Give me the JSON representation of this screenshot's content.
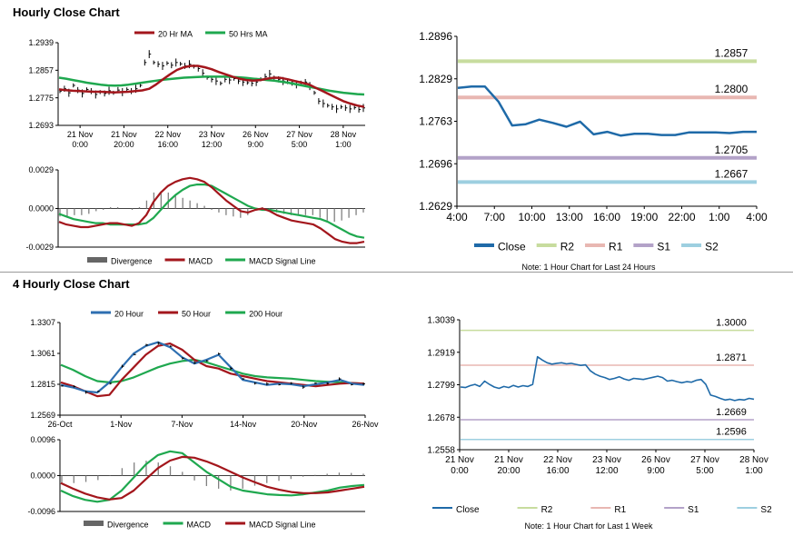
{
  "titles": {
    "hourly": "Hourly Close Chart",
    "four_hourly": "4 Hourly Close Chart"
  },
  "colors": {
    "dark_red": "#a3161c",
    "green": "#1fa84f",
    "blue": "#2e6fb1",
    "bar_gray": "#808080",
    "close_blue": "#1f6aa8",
    "r2": "#c7dc9e",
    "r1": "#e8b7b2",
    "s1": "#b3a2c8",
    "s2": "#9dcfe0"
  },
  "chart_data": [
    {
      "id": "hourly_price",
      "type": "line",
      "title": "Hourly Close Chart",
      "ylim": [
        1.2693,
        1.2939
      ],
      "yticks": [
        "1.2939",
        "1.2857",
        "1.2775",
        "1.2693"
      ],
      "xticks": [
        [
          "21 Nov",
          "0:00"
        ],
        [
          "21 Nov",
          "20:00"
        ],
        [
          "22 Nov",
          "16:00"
        ],
        [
          "23 Nov",
          "12:00"
        ],
        [
          "26 Nov",
          "9:00"
        ],
        [
          "27 Nov",
          "5:00"
        ],
        [
          "28 Nov",
          "1:00"
        ]
      ],
      "legend": [
        "20 Hr MA",
        "50 Hrs MA"
      ],
      "close": [
        1.2795,
        1.2802,
        1.279,
        1.2812,
        1.2798,
        1.2788,
        1.28,
        1.2795,
        1.2785,
        1.2792,
        1.2788,
        1.2796,
        1.279,
        1.2798,
        1.2792,
        1.28,
        1.2795,
        1.2802,
        1.2812,
        1.288,
        1.2905,
        1.288,
        1.2875,
        1.287,
        1.2878,
        1.2872,
        1.288,
        1.2876,
        1.287,
        1.2875,
        1.2868,
        1.2862,
        1.2848,
        1.2835,
        1.283,
        1.2825,
        1.2818,
        1.283,
        1.2828,
        1.2832,
        1.2825,
        1.2822,
        1.282,
        1.2818,
        1.2822,
        1.283,
        1.2838,
        1.2846,
        1.2835,
        1.283,
        1.2825,
        1.2822,
        1.282,
        1.2815,
        1.282,
        1.2822,
        1.281,
        1.279,
        1.2765,
        1.2758,
        1.2752,
        1.2748,
        1.2742,
        1.2748,
        1.2745,
        1.2742,
        1.2746,
        1.274,
        1.2745
      ],
      "series": [
        {
          "name": "20 Hr MA",
          "values": [
            1.28,
            1.2798,
            1.2796,
            1.2795,
            1.2794,
            1.2793,
            1.2793,
            1.2792,
            1.2791,
            1.2792,
            1.2793,
            1.2795,
            1.2797,
            1.2802,
            1.2815,
            1.283,
            1.2845,
            1.2858,
            1.2866,
            1.287,
            1.287,
            1.2866,
            1.286,
            1.2852,
            1.2845,
            1.2838,
            1.2832,
            1.2828,
            1.2826,
            1.2828,
            1.2832,
            1.2835,
            1.2834,
            1.283,
            1.2825,
            1.282,
            1.2815,
            1.2805,
            1.2795,
            1.2785,
            1.2775,
            1.2765,
            1.2758,
            1.2752,
            1.2748
          ]
        },
        {
          "name": "50 Hrs MA",
          "values": [
            1.2835,
            1.2832,
            1.2828,
            1.2824,
            1.282,
            1.2817,
            1.2814,
            1.2812,
            1.2811,
            1.2812,
            1.2814,
            1.2817,
            1.282,
            1.2823,
            1.2826,
            1.2829,
            1.2831,
            1.2833,
            1.2835,
            1.2836,
            1.2837,
            1.2838,
            1.2838,
            1.2838,
            1.2838,
            1.2837,
            1.2836,
            1.2834,
            1.2832,
            1.283,
            1.2828,
            1.2826,
            1.2823,
            1.282,
            1.2816,
            1.2812,
            1.2808,
            1.2804,
            1.28,
            1.2796,
            1.2793,
            1.279,
            1.2788,
            1.2786,
            1.2785
          ]
        }
      ]
    },
    {
      "id": "hourly_macd",
      "type": "line",
      "ylim": [
        -0.0029,
        0.0029
      ],
      "yticks": [
        "0.0029",
        "0.0000",
        "-0.0029"
      ],
      "legend": [
        "Divergence",
        "MACD",
        "MACD Signal Line"
      ],
      "series": [
        {
          "name": "MACD",
          "values": [
            -0.001,
            -0.0012,
            -0.0013,
            -0.0014,
            -0.0014,
            -0.0013,
            -0.0012,
            -0.0011,
            -0.0011,
            -0.0012,
            -0.0013,
            -0.0011,
            -0.0005,
            0.0005,
            0.0012,
            0.0017,
            0.002,
            0.0022,
            0.0023,
            0.0022,
            0.002,
            0.0016,
            0.0011,
            0.0006,
            0.0002,
            -0.0002,
            -0.0003,
            -0.0001,
            0.0,
            -0.0002,
            -0.0005,
            -0.0007,
            -0.0009,
            -0.001,
            -0.0011,
            -0.0012,
            -0.0015,
            -0.0019,
            -0.0023,
            -0.0025,
            -0.0026,
            -0.0026,
            -0.0025
          ]
        },
        {
          "name": "MACD Signal Line",
          "values": [
            -0.0004,
            -0.0006,
            -0.0008,
            -0.0009,
            -0.001,
            -0.0011,
            -0.0011,
            -0.0012,
            -0.0012,
            -0.0012,
            -0.0012,
            -0.0012,
            -0.0011,
            -0.0007,
            -0.0001,
            0.0005,
            0.001,
            0.0014,
            0.0017,
            0.0018,
            0.0018,
            0.0017,
            0.0014,
            0.0011,
            0.0008,
            0.0005,
            0.0002,
            0.0,
            -0.0001,
            -0.0001,
            -0.0002,
            -0.0003,
            -0.0004,
            -0.0005,
            -0.0006,
            -0.0007,
            -0.0008,
            -0.001,
            -0.0013,
            -0.0016,
            -0.0019,
            -0.0021,
            -0.0022
          ]
        },
        {
          "name": "Divergence",
          "values": [
            -0.0006,
            -0.0006,
            -0.0005,
            -0.0005,
            -0.0004,
            -0.0002,
            -0.0001,
            0.0001,
            0.0001,
            0.0,
            -0.0001,
            0.0001,
            0.0006,
            0.0012,
            0.0013,
            0.0012,
            0.001,
            0.0008,
            0.0006,
            0.0004,
            0.0002,
            -0.0001,
            -0.0003,
            -0.0005,
            -0.0006,
            -0.0007,
            -0.0005,
            -0.0001,
            0.0001,
            -0.0001,
            -0.0003,
            -0.0004,
            -0.0005,
            -0.0005,
            -0.0005,
            -0.0005,
            -0.0007,
            -0.0009,
            -0.001,
            -0.0009,
            -0.0007,
            -0.0005,
            -0.0003
          ]
        }
      ]
    },
    {
      "id": "hourly_24h",
      "type": "line",
      "ylim": [
        1.2629,
        1.2896
      ],
      "yticks": [
        "1.2896",
        "1.2829",
        "1.2763",
        "1.2696",
        "1.2629"
      ],
      "xticks": [
        "4:00",
        "7:00",
        "10:00",
        "13:00",
        "16:00",
        "19:00",
        "22:00",
        "1:00",
        "4:00"
      ],
      "legend": [
        "Close",
        "R2",
        "R1",
        "S1",
        "S2"
      ],
      "levels": {
        "R2": 1.2857,
        "R1": 1.28,
        "S1": 1.2705,
        "S2": 1.2667
      },
      "level_labels": {
        "R2": "1.2857",
        "R1": "1.2800",
        "S1": "1.2705",
        "S2": "1.2667"
      },
      "note": "Note: 1 Hour Chart for Last 24 Hours",
      "values": [
        1.2815,
        1.2817,
        1.2817,
        1.2793,
        1.2756,
        1.2758,
        1.2765,
        1.276,
        1.2754,
        1.2762,
        1.2742,
        1.2746,
        1.274,
        1.2743,
        1.2743,
        1.2741,
        1.2741,
        1.2745,
        1.2745,
        1.2745,
        1.2744,
        1.2746,
        1.2746
      ]
    },
    {
      "id": "four_hourly_price",
      "type": "line",
      "title": "4 Hourly Close Chart",
      "ylim": [
        1.2569,
        1.3307
      ],
      "yticks": [
        "1.3307",
        "1.3061",
        "1.2815",
        "1.2569"
      ],
      "xticks": [
        "26-Oct",
        "1-Nov",
        "7-Nov",
        "14-Nov",
        "20-Nov",
        "26-Nov"
      ],
      "legend": [
        "20 Hour",
        "50 Hour",
        "200 Hour"
      ],
      "series": [
        {
          "name": "20 Hour",
          "values": [
            1.281,
            1.279,
            1.276,
            1.275,
            1.283,
            1.295,
            1.306,
            1.312,
            1.315,
            1.311,
            1.303,
            1.298,
            1.301,
            1.305,
            1.295,
            1.285,
            1.283,
            1.281,
            1.282,
            1.2815,
            1.28,
            1.2815,
            1.283,
            1.285,
            1.282,
            1.281
          ]
        },
        {
          "name": "50 Hour",
          "values": [
            1.283,
            1.28,
            1.276,
            1.272,
            1.273,
            1.285,
            1.295,
            1.305,
            1.312,
            1.314,
            1.309,
            1.301,
            1.296,
            1.294,
            1.29,
            1.288,
            1.286,
            1.284,
            1.283,
            1.282,
            1.281,
            1.28,
            1.281,
            1.282,
            1.2825,
            1.282
          ]
        },
        {
          "name": "200 Hour",
          "values": [
            1.297,
            1.293,
            1.288,
            1.284,
            1.283,
            1.284,
            1.287,
            1.291,
            1.295,
            1.298,
            1.3,
            1.301,
            1.299,
            1.296,
            1.293,
            1.29,
            1.288,
            1.287,
            1.2865,
            1.286,
            1.285,
            1.284,
            1.2835,
            1.283,
            1.2825,
            1.282
          ]
        }
      ]
    },
    {
      "id": "four_hourly_macd",
      "type": "line",
      "ylim": [
        -0.0096,
        0.0096
      ],
      "yticks": [
        "0.0096",
        "0.0000",
        "-0.0096"
      ],
      "legend": [
        "Divergence",
        "MACD",
        "MACD Signal Line"
      ],
      "series": [
        {
          "name": "MACD",
          "values": [
            -0.004,
            -0.0055,
            -0.0065,
            -0.007,
            -0.0065,
            -0.004,
            -0.0005,
            0.003,
            0.0055,
            0.0065,
            0.006,
            0.0035,
            0.001,
            -0.001,
            -0.003,
            -0.004,
            -0.0045,
            -0.005,
            -0.0052,
            -0.0053,
            -0.005,
            -0.0045,
            -0.004,
            -0.0032,
            -0.0028,
            -0.0025
          ]
        },
        {
          "name": "MACD Signal Line",
          "values": [
            -0.002,
            -0.0035,
            -0.0048,
            -0.0058,
            -0.0064,
            -0.006,
            -0.004,
            -0.001,
            0.002,
            0.004,
            0.005,
            0.0048,
            0.0038,
            0.0025,
            0.001,
            -0.0005,
            -0.0018,
            -0.003,
            -0.0038,
            -0.0044,
            -0.0047,
            -0.0047,
            -0.0045,
            -0.004,
            -0.0035,
            -0.003
          ]
        },
        {
          "name": "Divergence",
          "values": [
            -0.002,
            -0.002,
            -0.0017,
            -0.0012,
            -0.0001,
            0.002,
            0.0035,
            0.004,
            0.0035,
            0.0025,
            0.001,
            -0.0013,
            -0.0028,
            -0.0035,
            -0.004,
            -0.0035,
            -0.0027,
            -0.002,
            -0.0014,
            -0.0009,
            -0.0003,
            0.0002,
            0.0005,
            0.0008,
            0.0007,
            0.0005
          ]
        }
      ]
    },
    {
      "id": "one_week",
      "type": "line",
      "ylim": [
        1.2558,
        1.3039
      ],
      "yticks": [
        "1.3039",
        "1.2919",
        "1.2799",
        "1.2678",
        "1.2558"
      ],
      "xticks": [
        [
          "21 Nov",
          "0:00"
        ],
        [
          "21 Nov",
          "20:00"
        ],
        [
          "22 Nov",
          "16:00"
        ],
        [
          "23 Nov",
          "12:00"
        ],
        [
          "26 Nov",
          "9:00"
        ],
        [
          "27 Nov",
          "5:00"
        ],
        [
          "28 Nov",
          "1:00"
        ]
      ],
      "legend": [
        "Close",
        "R2",
        "R1",
        "S1",
        "S2"
      ],
      "levels": {
        "R2": 1.3,
        "R1": 1.2871,
        "S1": 1.2669,
        "S2": 1.2596
      },
      "level_labels": {
        "R2": "1.3000",
        "R1": "1.2871",
        "S1": "1.2669",
        "S2": "1.2596"
      },
      "note": "Note: 1 Hour Chart for Last 1 Week",
      "values": [
        1.279,
        1.2788,
        1.2795,
        1.28,
        1.2792,
        1.2812,
        1.28,
        1.279,
        1.2785,
        1.2792,
        1.2788,
        1.2796,
        1.279,
        1.2795,
        1.2792,
        1.28,
        1.2902,
        1.289,
        1.288,
        1.2875,
        1.2878,
        1.288,
        1.2876,
        1.2878,
        1.2874,
        1.287,
        1.2872,
        1.285,
        1.2838,
        1.283,
        1.2825,
        1.2818,
        1.2822,
        1.2828,
        1.282,
        1.2815,
        1.2822,
        1.282,
        1.2818,
        1.2822,
        1.2826,
        1.283,
        1.2825,
        1.2812,
        1.2815,
        1.281,
        1.2806,
        1.281,
        1.2808,
        1.2815,
        1.2818,
        1.28,
        1.276,
        1.2755,
        1.2748,
        1.2742,
        1.2745,
        1.274,
        1.2744,
        1.2742,
        1.2748,
        1.2745
      ]
    }
  ]
}
